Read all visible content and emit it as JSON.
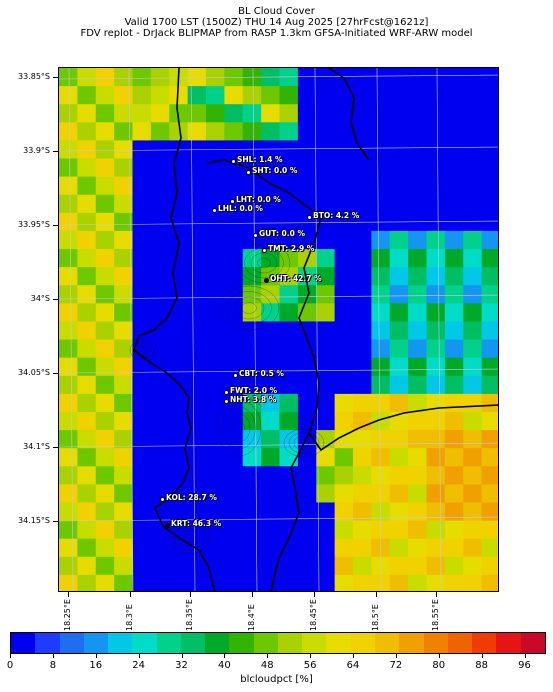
{
  "title": {
    "line1": "BL Cloud Cover",
    "line2": "Valid 1700 LST (1500Z) THU 14 Aug 2025 [27hrFcst@1621z]",
    "line3": "FDV replot - DrJack BLIPMAP from RASP 1.3km GFSA-Initiated WRF-ARW model"
  },
  "lat_labels": [
    "33.85°S",
    "33.9°S",
    "33.95°S",
    "34°S",
    "34.05°S",
    "34.1°S",
    "34.15°S"
  ],
  "lon_labels": [
    "18.25°E",
    "18.3°E",
    "18.35°E",
    "18.4°E",
    "18.45°E",
    "18.5°E",
    "18.55°E"
  ],
  "stations": [
    {
      "label": "SHL: 1.4 %",
      "value": 1.4,
      "dot_color": "#ffffff"
    },
    {
      "label": "SHT: 0.0 %",
      "value": 0.0,
      "dot_color": "#ffffff"
    },
    {
      "label": "LHT: 0.0 %",
      "value": 0.0,
      "dot_color": "#ffffff"
    },
    {
      "label": "LHL: 0.0 %",
      "value": 0.0,
      "dot_color": "#ffffff"
    },
    {
      "label": "BTO: 4.2 %",
      "value": 4.2,
      "dot_color": "#ffffff"
    },
    {
      "label": "GUT: 0.0 %",
      "value": 0.0,
      "dot_color": "#ffffff"
    },
    {
      "label": "TMT: 2.9 %",
      "value": 2.9,
      "dot_color": "#ffffff"
    },
    {
      "label": "OHT: 42.7 %",
      "value": 42.7,
      "dot_color": "#000000"
    },
    {
      "label": "CBT: 0.5 %",
      "value": 0.5,
      "dot_color": "#ffffff"
    },
    {
      "label": "FWT: 2.0 %",
      "value": 2.0,
      "dot_color": "#ffffff"
    },
    {
      "label": "NHT: 3.8 %",
      "value": 3.8,
      "dot_color": "#ffffff"
    },
    {
      "label": "KOL: 28.7 %",
      "value": 28.7,
      "dot_color": "#ffffff"
    },
    {
      "label": "KRT: 46.3 %",
      "value": 46.3,
      "dot_color": "#000000"
    }
  ],
  "colorbar": {
    "label": "blcloudpct [%]",
    "ticks": [
      "0",
      "8",
      "16",
      "24",
      "32",
      "40",
      "48",
      "56",
      "64",
      "72",
      "80",
      "88",
      "96"
    ],
    "colors": [
      "#0000f0",
      "#1e3cff",
      "#1e6ef0",
      "#1496f0",
      "#00c8e6",
      "#00dcc8",
      "#00d28c",
      "#00be64",
      "#00aa28",
      "#32b400",
      "#6ec800",
      "#aad200",
      "#c8dc00",
      "#e6dc00",
      "#f0d200",
      "#f0be00",
      "#f0a000",
      "#f08200",
      "#f06400",
      "#f03c00",
      "#e61414",
      "#c80a28"
    ],
    "min": 0,
    "max": 100
  }
}
